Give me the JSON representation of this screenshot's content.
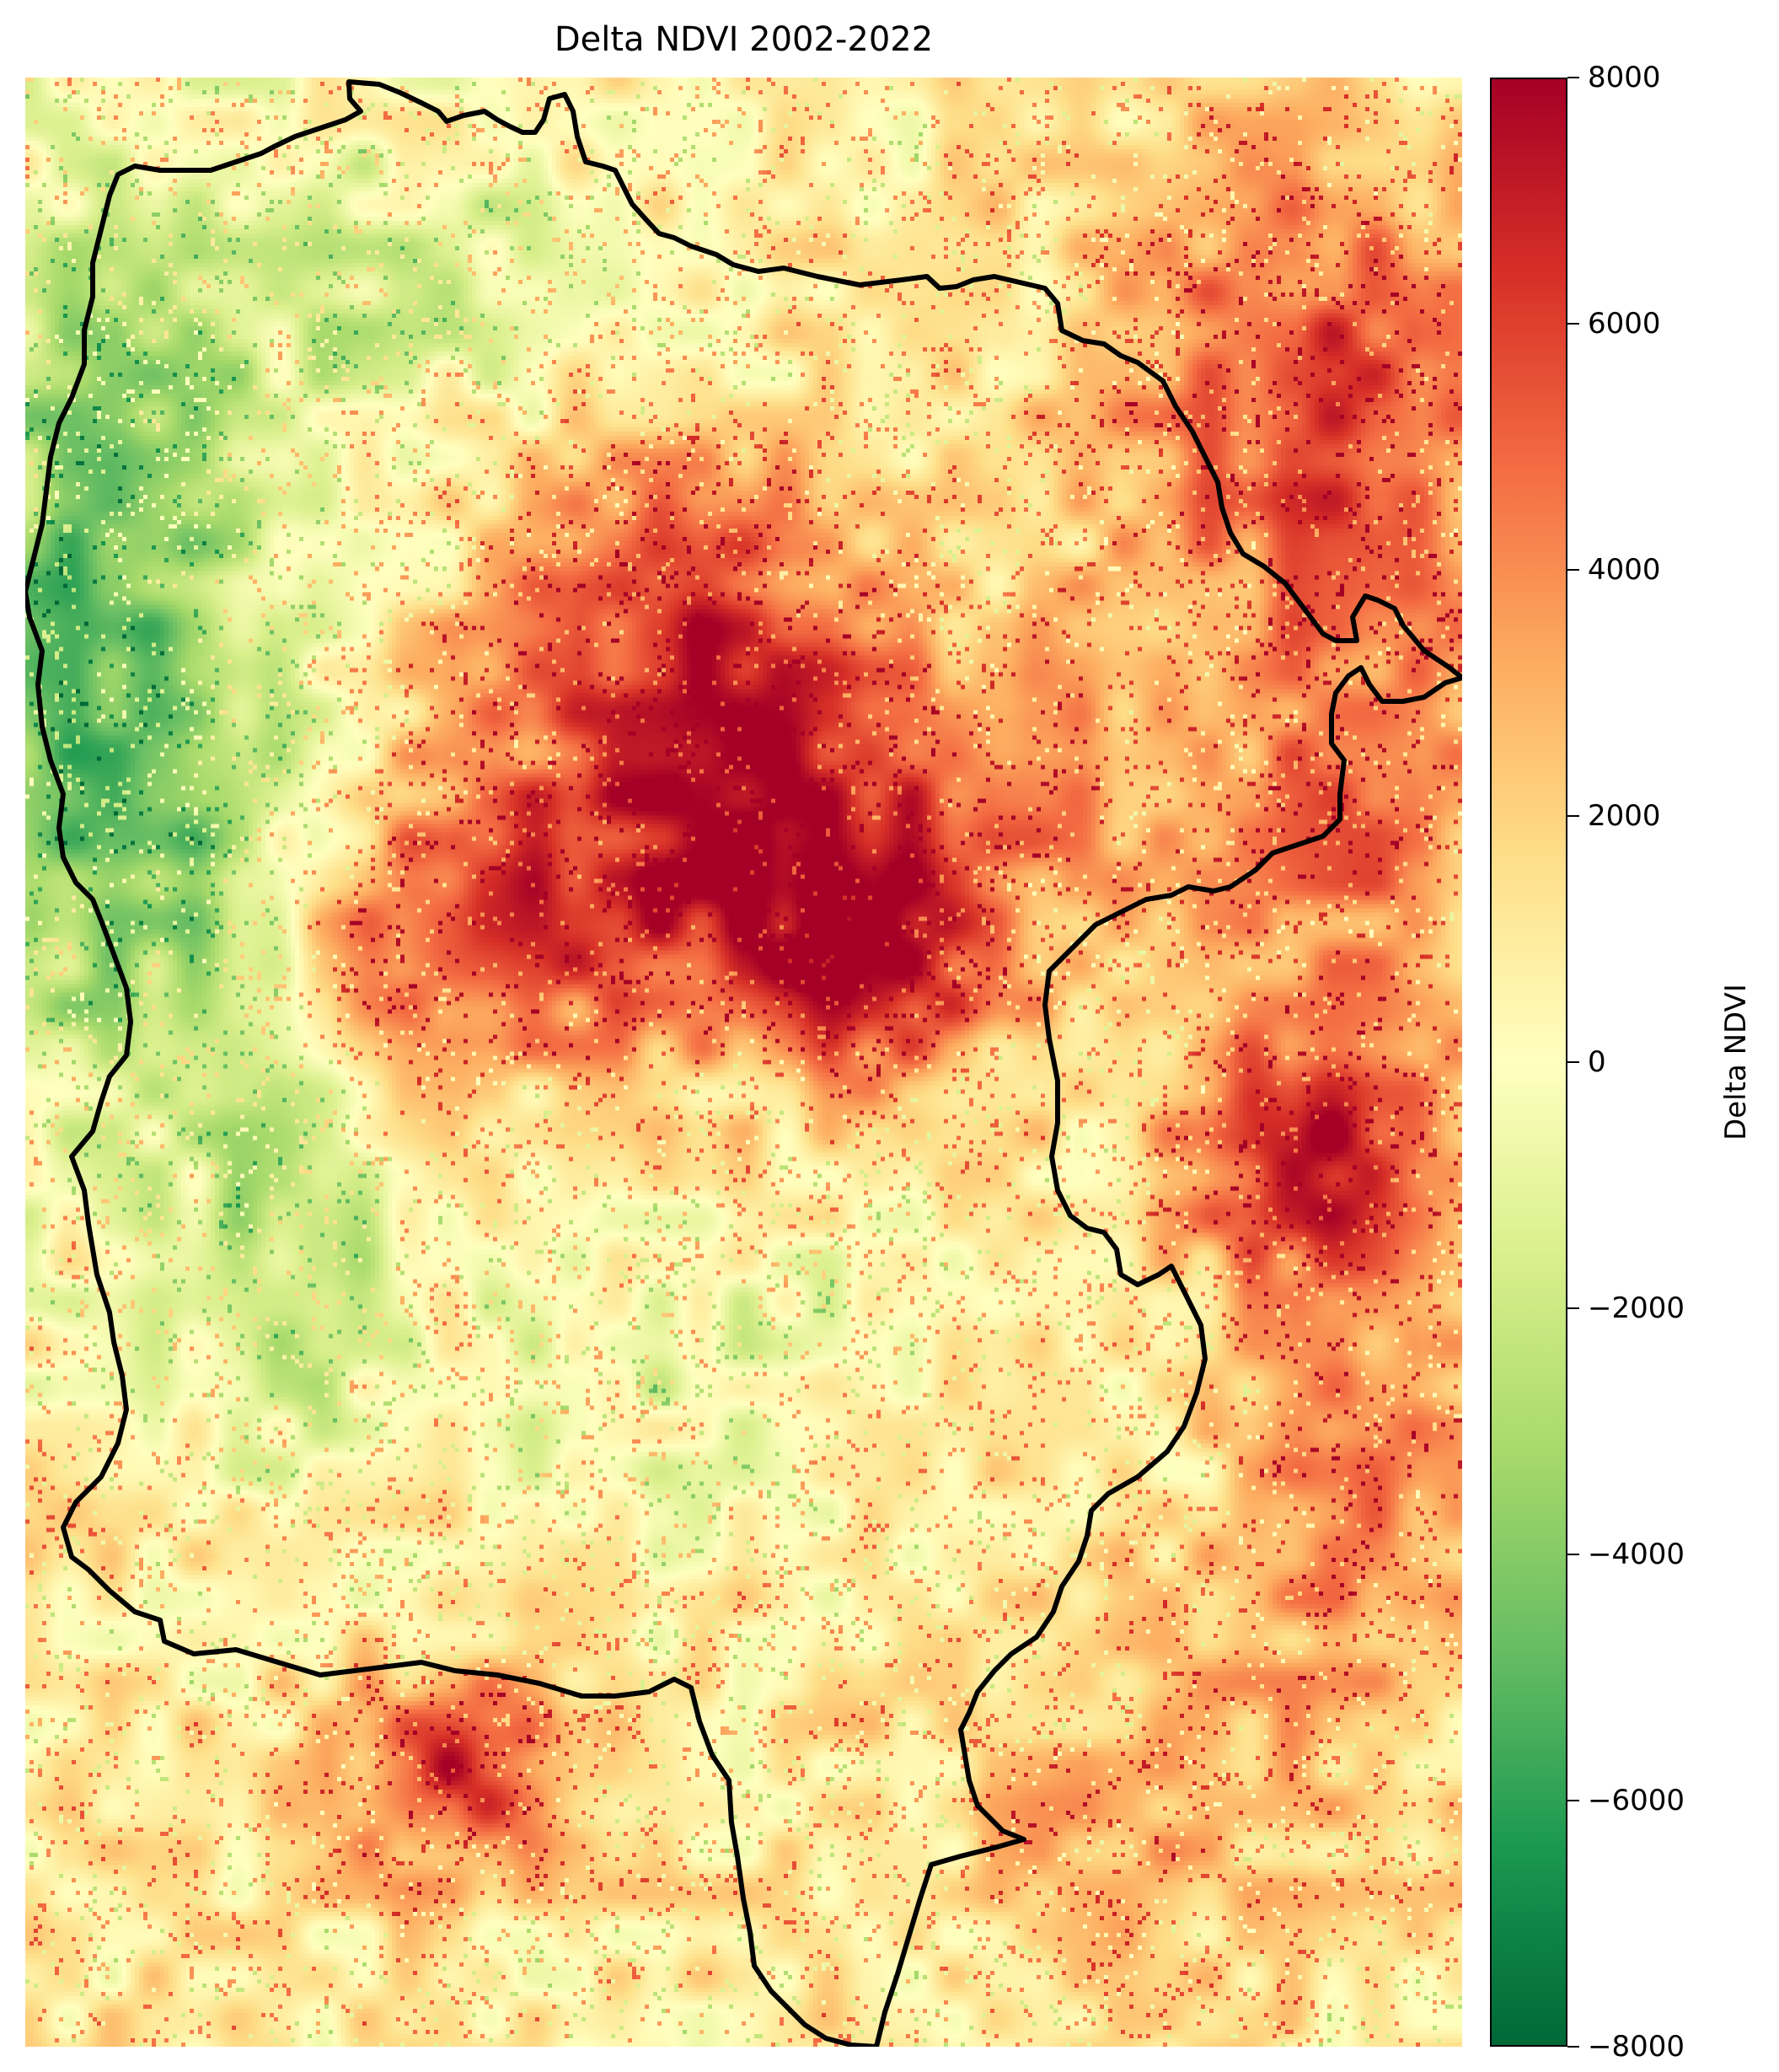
{
  "title": "Delta NDVI 2002-2022",
  "colorbar": {
    "label": "Delta NDVI",
    "min": -8000,
    "max": 8000,
    "ticks": [
      {
        "value": 8000,
        "label": "8000"
      },
      {
        "value": 6000,
        "label": "6000"
      },
      {
        "value": 4000,
        "label": "4000"
      },
      {
        "value": 2000,
        "label": "2000"
      },
      {
        "value": 0,
        "label": "0"
      },
      {
        "value": -2000,
        "label": "−2000"
      },
      {
        "value": -4000,
        "label": "−4000"
      },
      {
        "value": -6000,
        "label": "−6000"
      },
      {
        "value": -8000,
        "label": "−8000"
      }
    ],
    "colormap": "RdYlGn_r",
    "colors": {
      "dark_red": "#a50026",
      "red": "#d73027",
      "orange": "#f46d43",
      "light_orange": "#fdae61",
      "pale": "#fee08b",
      "neutral": "#ffffbf",
      "pale_green": "#d9ef8b",
      "light_green": "#a6d96a",
      "green": "#66bd63",
      "mid_green": "#1a9850",
      "dark_green": "#006837"
    }
  },
  "map": {
    "variable": "Delta NDVI",
    "has_boundary_outline": true,
    "boundary_color": "#000000",
    "axes_visible": false
  }
}
